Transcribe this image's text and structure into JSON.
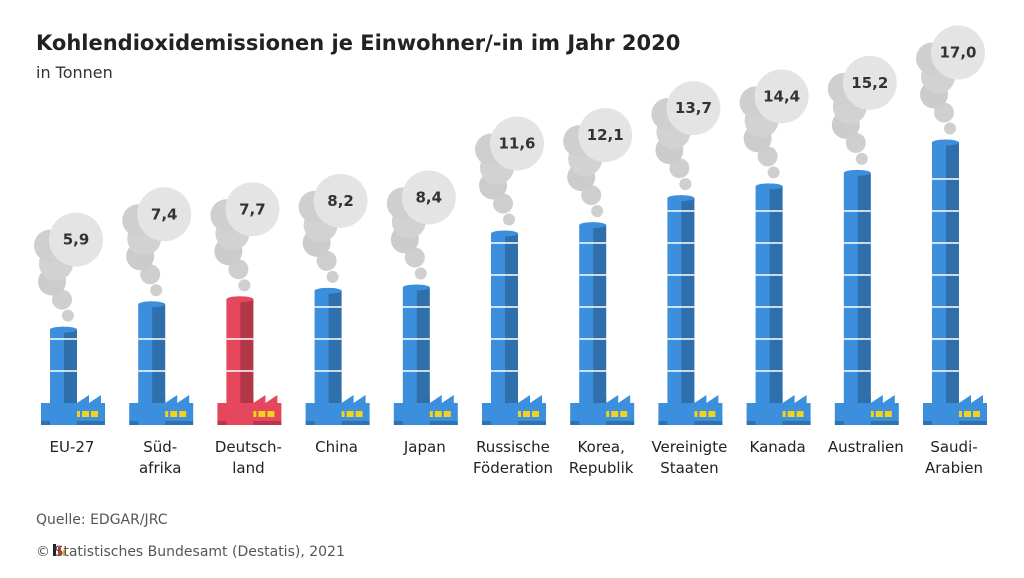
{
  "title": "Kohlendioxidemissionen je Einwohner/-in im Jahr 2020",
  "subtitle": "in Tonnen",
  "chart_data": {
    "type": "bar",
    "categories": [
      "EU-27",
      "Süd-\nafrika",
      "Deutsch-\nland",
      "China",
      "Japan",
      "Russische\nFöderation",
      "Korea,\nRepublik",
      "Vereinigte\nStaaten",
      "Kanada",
      "Australien",
      "Saudi-\nArabien"
    ],
    "values": [
      5.9,
      7.4,
      7.7,
      8.2,
      8.4,
      11.6,
      12.1,
      13.7,
      14.4,
      15.2,
      17.0
    ],
    "value_labels": [
      "5,9",
      "7,4",
      "7,7",
      "8,2",
      "8,4",
      "11,6",
      "12,1",
      "13,7",
      "14,4",
      "15,2",
      "17,0"
    ],
    "colors": [
      "#3b8fdd",
      "#3b8fdd",
      "#e5475c",
      "#3b8fdd",
      "#3b8fdd",
      "#3b8fdd",
      "#3b8fdd",
      "#3b8fdd",
      "#3b8fdd",
      "#3b8fdd",
      "#3b8fdd"
    ]
  },
  "footer": {
    "source": "Quelle: EDGAR/JRC",
    "copyright": "© Statistisches Bundesamt (Destatis), 2021"
  }
}
